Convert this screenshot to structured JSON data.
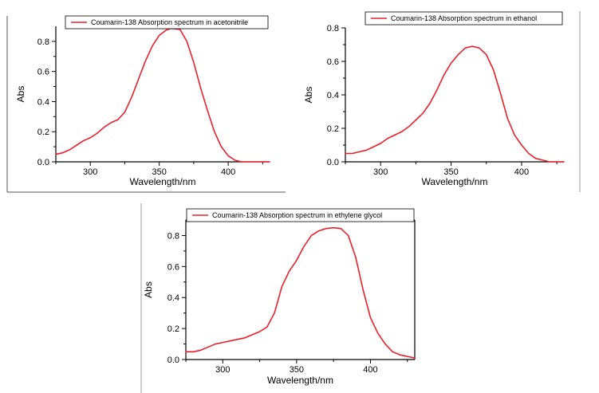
{
  "chart_data": [
    {
      "type": "line",
      "legend_position": "top-left",
      "xlabel": "Wavelength/nm",
      "ylabel": "Abs",
      "xlim": [
        275,
        430
      ],
      "ylim": [
        0.0,
        0.9
      ],
      "xticks": [
        300,
        350,
        400
      ],
      "yticks": [
        0.0,
        0.2,
        0.4,
        0.6,
        0.8
      ],
      "ytick_labels": [
        "0.0",
        "0.2",
        "0.4",
        "0.6",
        "0.8"
      ],
      "grid": false,
      "series": [
        {
          "name": "Coumarin-138 Absorption spectrum in acetonitrile",
          "color": "#e8202a",
          "x": [
            275,
            280,
            285,
            290,
            295,
            300,
            305,
            310,
            315,
            320,
            325,
            330,
            335,
            340,
            345,
            350,
            355,
            358,
            360,
            365,
            370,
            375,
            380,
            385,
            390,
            395,
            400,
            405,
            410,
            415,
            420,
            425,
            430
          ],
          "y": [
            0.05,
            0.06,
            0.08,
            0.11,
            0.14,
            0.16,
            0.19,
            0.23,
            0.26,
            0.28,
            0.33,
            0.43,
            0.55,
            0.67,
            0.77,
            0.84,
            0.875,
            0.885,
            0.885,
            0.88,
            0.8,
            0.66,
            0.49,
            0.34,
            0.2,
            0.1,
            0.04,
            0.01,
            0.0,
            0.0,
            0.0,
            0.0,
            0.0
          ]
        }
      ]
    },
    {
      "type": "line",
      "legend_position": "top-center",
      "xlabel": "Wavelength/nm",
      "ylabel": "Abs",
      "xlim": [
        275,
        430
      ],
      "ylim": [
        0.0,
        0.8
      ],
      "xticks": [
        300,
        350,
        400
      ],
      "yticks": [
        0.0,
        0.2,
        0.4,
        0.6,
        0.8
      ],
      "ytick_labels": [
        "0.0",
        "0.2",
        "0.4",
        "0.6",
        "0.8"
      ],
      "grid": false,
      "series": [
        {
          "name": "Coumarin-138 Absorption spectrum in ethanol",
          "color": "#e8202a",
          "x": [
            275,
            280,
            285,
            290,
            295,
            300,
            305,
            310,
            315,
            320,
            325,
            330,
            335,
            340,
            345,
            350,
            355,
            360,
            365,
            370,
            375,
            380,
            385,
            390,
            395,
            400,
            405,
            410,
            415,
            420,
            425,
            430
          ],
          "y": [
            0.05,
            0.05,
            0.06,
            0.07,
            0.09,
            0.11,
            0.14,
            0.16,
            0.18,
            0.21,
            0.25,
            0.29,
            0.35,
            0.43,
            0.52,
            0.59,
            0.64,
            0.68,
            0.69,
            0.68,
            0.64,
            0.55,
            0.41,
            0.26,
            0.16,
            0.1,
            0.05,
            0.02,
            0.01,
            0.0,
            0.0,
            0.0
          ]
        }
      ]
    },
    {
      "type": "line",
      "legend_position": "top-center",
      "xlabel": "Wavelength/nm",
      "ylabel": "Abs",
      "xlim": [
        275,
        430
      ],
      "ylim": [
        0.0,
        0.9
      ],
      "xticks": [
        300,
        350,
        400
      ],
      "yticks": [
        0.0,
        0.2,
        0.4,
        0.6,
        0.8
      ],
      "ytick_labels": [
        "0.0",
        "0.2",
        "0.4",
        "0.6",
        "0.8"
      ],
      "grid": false,
      "series": [
        {
          "name": "Coumarin-138 Absorption spectrum in ethylene glycol",
          "color": "#e8202a",
          "x": [
            275,
            280,
            285,
            290,
            295,
            300,
            305,
            310,
            315,
            320,
            325,
            330,
            335,
            340,
            345,
            350,
            355,
            360,
            365,
            370,
            375,
            380,
            385,
            390,
            395,
            400,
            405,
            410,
            415,
            420,
            425,
            430
          ],
          "y": [
            0.05,
            0.05,
            0.06,
            0.08,
            0.1,
            0.11,
            0.12,
            0.13,
            0.14,
            0.16,
            0.18,
            0.21,
            0.3,
            0.47,
            0.57,
            0.64,
            0.73,
            0.8,
            0.83,
            0.845,
            0.85,
            0.845,
            0.8,
            0.66,
            0.45,
            0.27,
            0.17,
            0.1,
            0.05,
            0.03,
            0.02,
            0.01
          ]
        }
      ]
    }
  ]
}
